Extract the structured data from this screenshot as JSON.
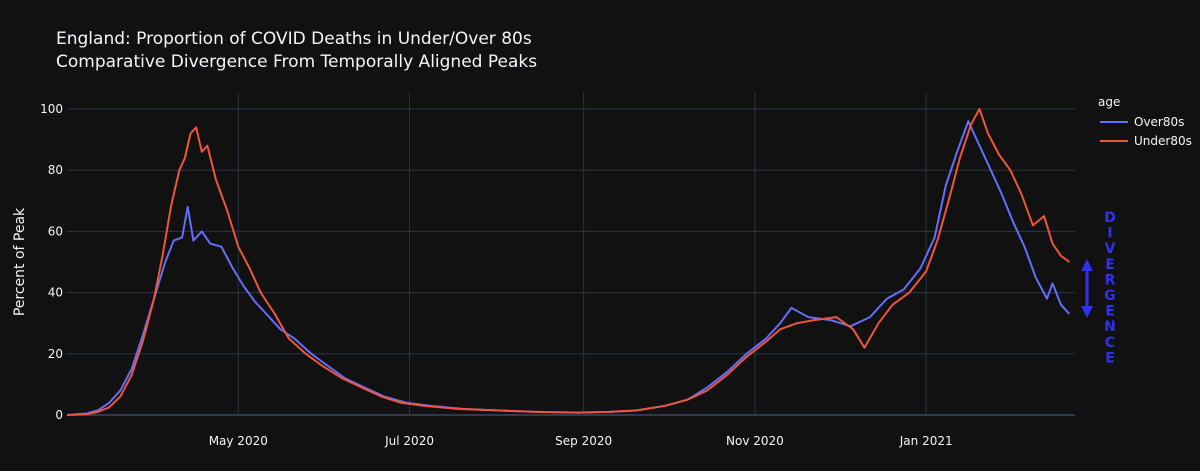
{
  "chart_data": {
    "type": "line",
    "title": "England: Proportion of COVID Deaths in Under/Over 80s",
    "subtitle": "Comparative Divergence From Temporally Aligned Peaks",
    "xlabel": "",
    "ylabel": "Percent of Peak",
    "ylim": [
      0,
      100
    ],
    "xlim": [
      "2020-03-01",
      "2021-02-23"
    ],
    "y_ticks": [
      0,
      20,
      40,
      60,
      80,
      100
    ],
    "x_ticks": [
      {
        "date": "2020-05-01",
        "label": "May 2020"
      },
      {
        "date": "2020-07-01",
        "label": "Jul 2020"
      },
      {
        "date": "2020-09-01",
        "label": "Sep 2020"
      },
      {
        "date": "2020-11-01",
        "label": "Nov 2020"
      },
      {
        "date": "2021-01-01",
        "label": "Jan 2021"
      }
    ],
    "grid": true,
    "legend": {
      "title": "age",
      "position": "top-right"
    },
    "series": [
      {
        "name": "Over80s",
        "color": "#636efa",
        "points": [
          [
            "2020-03-01",
            0
          ],
          [
            "2020-03-08",
            0.5
          ],
          [
            "2020-03-12",
            1.5
          ],
          [
            "2020-03-16",
            4
          ],
          [
            "2020-03-20",
            8
          ],
          [
            "2020-03-24",
            15
          ],
          [
            "2020-03-28",
            26
          ],
          [
            "2020-04-01",
            38
          ],
          [
            "2020-04-05",
            50
          ],
          [
            "2020-04-08",
            57
          ],
          [
            "2020-04-11",
            58
          ],
          [
            "2020-04-13",
            68
          ],
          [
            "2020-04-15",
            57
          ],
          [
            "2020-04-18",
            60
          ],
          [
            "2020-04-21",
            56
          ],
          [
            "2020-04-25",
            55
          ],
          [
            "2020-04-29",
            48
          ],
          [
            "2020-05-03",
            42
          ],
          [
            "2020-05-07",
            37
          ],
          [
            "2020-05-11",
            33
          ],
          [
            "2020-05-16",
            28
          ],
          [
            "2020-05-21",
            25
          ],
          [
            "2020-05-27",
            20
          ],
          [
            "2020-06-02",
            16
          ],
          [
            "2020-06-08",
            12
          ],
          [
            "2020-06-15",
            9
          ],
          [
            "2020-06-22",
            6
          ],
          [
            "2020-06-30",
            4
          ],
          [
            "2020-07-08",
            3
          ],
          [
            "2020-07-20",
            2
          ],
          [
            "2020-08-01",
            1.5
          ],
          [
            "2020-08-15",
            1
          ],
          [
            "2020-08-30",
            0.8
          ],
          [
            "2020-09-10",
            1
          ],
          [
            "2020-09-20",
            1.5
          ],
          [
            "2020-09-30",
            3
          ],
          [
            "2020-10-08",
            5
          ],
          [
            "2020-10-15",
            9
          ],
          [
            "2020-10-22",
            14
          ],
          [
            "2020-10-29",
            20
          ],
          [
            "2020-11-05",
            25
          ],
          [
            "2020-11-10",
            30
          ],
          [
            "2020-11-14",
            35
          ],
          [
            "2020-11-20",
            32
          ],
          [
            "2020-11-28",
            31
          ],
          [
            "2020-12-05",
            29
          ],
          [
            "2020-12-12",
            32
          ],
          [
            "2020-12-18",
            38
          ],
          [
            "2020-12-24",
            41
          ],
          [
            "2020-12-30",
            48
          ],
          [
            "2021-01-04",
            58
          ],
          [
            "2021-01-08",
            75
          ],
          [
            "2021-01-12",
            86
          ],
          [
            "2021-01-16",
            96
          ],
          [
            "2021-01-20",
            88
          ],
          [
            "2021-01-24",
            80
          ],
          [
            "2021-01-28",
            72
          ],
          [
            "2021-02-01",
            63
          ],
          [
            "2021-02-05",
            55
          ],
          [
            "2021-02-09",
            45
          ],
          [
            "2021-02-13",
            38
          ],
          [
            "2021-02-15",
            43
          ],
          [
            "2021-02-18",
            36
          ],
          [
            "2021-02-21",
            33
          ]
        ]
      },
      {
        "name": "Under80s",
        "color": "#ef553b",
        "points": [
          [
            "2020-03-01",
            0
          ],
          [
            "2020-03-08",
            0.3
          ],
          [
            "2020-03-12",
            1
          ],
          [
            "2020-03-16",
            2.5
          ],
          [
            "2020-03-20",
            6
          ],
          [
            "2020-03-24",
            13
          ],
          [
            "2020-03-28",
            24
          ],
          [
            "2020-04-01",
            38
          ],
          [
            "2020-04-04",
            52
          ],
          [
            "2020-04-07",
            68
          ],
          [
            "2020-04-10",
            80
          ],
          [
            "2020-04-12",
            84
          ],
          [
            "2020-04-14",
            92
          ],
          [
            "2020-04-16",
            94
          ],
          [
            "2020-04-18",
            86
          ],
          [
            "2020-04-20",
            88
          ],
          [
            "2020-04-23",
            77
          ],
          [
            "2020-04-27",
            67
          ],
          [
            "2020-05-01",
            55
          ],
          [
            "2020-05-05",
            48
          ],
          [
            "2020-05-09",
            40
          ],
          [
            "2020-05-14",
            33
          ],
          [
            "2020-05-19",
            25
          ],
          [
            "2020-05-25",
            20
          ],
          [
            "2020-05-31",
            16
          ],
          [
            "2020-06-07",
            12
          ],
          [
            "2020-06-14",
            9
          ],
          [
            "2020-06-21",
            6
          ],
          [
            "2020-06-28",
            4
          ],
          [
            "2020-07-06",
            3
          ],
          [
            "2020-07-18",
            2
          ],
          [
            "2020-08-01",
            1.5
          ],
          [
            "2020-08-15",
            1
          ],
          [
            "2020-08-30",
            0.8
          ],
          [
            "2020-09-10",
            1
          ],
          [
            "2020-09-20",
            1.5
          ],
          [
            "2020-09-30",
            3
          ],
          [
            "2020-10-08",
            5
          ],
          [
            "2020-10-15",
            8
          ],
          [
            "2020-10-22",
            13
          ],
          [
            "2020-10-29",
            19
          ],
          [
            "2020-11-05",
            24
          ],
          [
            "2020-11-10",
            28
          ],
          [
            "2020-11-16",
            30
          ],
          [
            "2020-11-22",
            31
          ],
          [
            "2020-11-30",
            32
          ],
          [
            "2020-12-06",
            28
          ],
          [
            "2020-12-10",
            22
          ],
          [
            "2020-12-15",
            30
          ],
          [
            "2020-12-20",
            36
          ],
          [
            "2020-12-26",
            40
          ],
          [
            "2021-01-01",
            47
          ],
          [
            "2021-01-05",
            57
          ],
          [
            "2021-01-09",
            70
          ],
          [
            "2021-01-13",
            84
          ],
          [
            "2021-01-17",
            95
          ],
          [
            "2021-01-20",
            100
          ],
          [
            "2021-01-23",
            92
          ],
          [
            "2021-01-27",
            85
          ],
          [
            "2021-01-31",
            80
          ],
          [
            "2021-02-04",
            72
          ],
          [
            "2021-02-08",
            62
          ],
          [
            "2021-02-12",
            65
          ],
          [
            "2021-02-15",
            56
          ],
          [
            "2021-02-18",
            52
          ],
          [
            "2021-02-21",
            50
          ]
        ]
      }
    ],
    "annotation": {
      "text": "DIVERGENCE",
      "color": "#3030f0",
      "range": [
        35,
        50
      ]
    }
  }
}
